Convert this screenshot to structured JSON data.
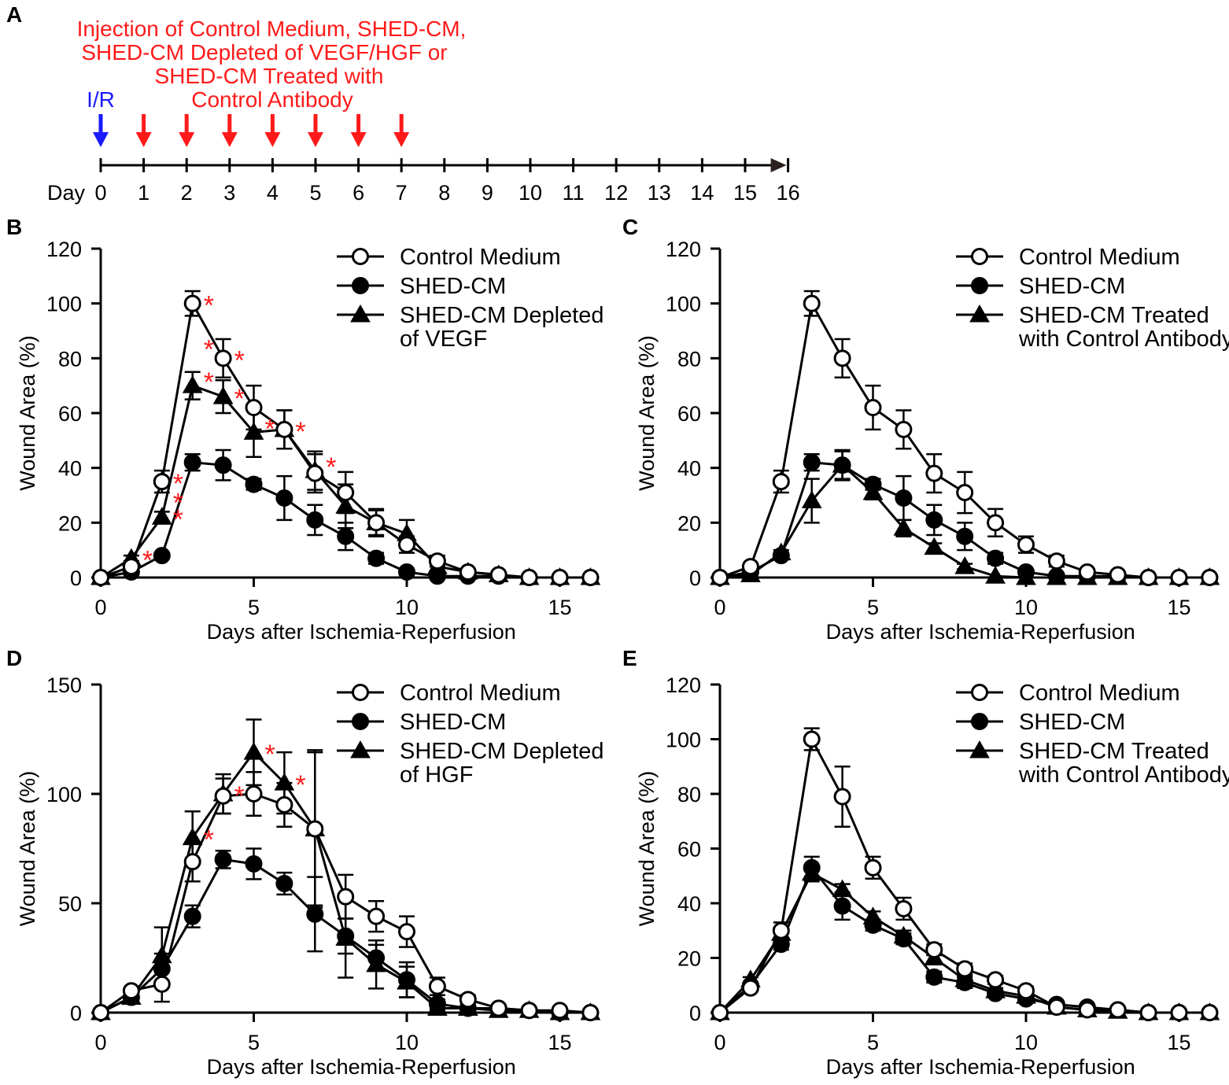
{
  "timeline": {
    "letter": "A",
    "header_lines": [
      "Injection of Control Medium, SHED-CM,",
      "SHED-CM Depleted of VEGF/HGF or",
      "SHED-CM Treated with",
      "Control Antibody"
    ],
    "ir_label": "I/R",
    "day_word": "Day",
    "ir_day": 0,
    "injection_days": [
      1,
      2,
      3,
      4,
      5,
      6,
      7
    ],
    "days": [
      "0",
      "1",
      "2",
      "3",
      "4",
      "5",
      "6",
      "7",
      "8",
      "9",
      "10",
      "11",
      "12",
      "13",
      "14",
      "15",
      "16"
    ],
    "colors": {
      "injection": "#ff1a1a",
      "ir": "#1a1aff",
      "axis": "#000000"
    }
  },
  "chart_data": [
    {
      "panel": "B",
      "type": "line",
      "xlabel": "Days after Ischemia-Reperfusion",
      "ylabel": "Wound Area (%)",
      "xlim": [
        0,
        16
      ],
      "ylim": [
        0,
        120
      ],
      "xticks": [
        "0",
        "5",
        "10",
        "15"
      ],
      "yticks": [
        "0",
        "20",
        "40",
        "60",
        "80",
        "100",
        "120"
      ],
      "legend_position": "top-right",
      "x": [
        0,
        1,
        2,
        3,
        4,
        5,
        6,
        7,
        8,
        9,
        10,
        11,
        12,
        13,
        14,
        15,
        16
      ],
      "series": [
        {
          "name": "Control Medium",
          "marker": "open-circle",
          "values": [
            0,
            4,
            35,
            100,
            80,
            62,
            54,
            38,
            31,
            20,
            12,
            6,
            2,
            1,
            0,
            0,
            0
          ],
          "errors": [
            0,
            1,
            4,
            4.5,
            7,
            8,
            7,
            7,
            7.5,
            5,
            3,
            2,
            1,
            0.5,
            0,
            0,
            0
          ]
        },
        {
          "name": "SHED-CM",
          "marker": "filled-circle",
          "values": [
            0,
            2,
            8,
            42,
            41,
            34,
            29,
            21,
            15,
            7,
            2,
            0.5,
            0.5,
            0.5,
            0,
            0,
            0
          ],
          "errors": [
            0,
            0.5,
            1,
            3,
            5.5,
            2,
            8,
            5.5,
            5,
            2,
            1,
            0.5,
            0,
            0,
            0,
            0,
            0
          ]
        },
        {
          "name": "SHED-CM Depleted of VEGF",
          "legend_lines": [
            "SHED-CM Depleted",
            "of VEGF"
          ],
          "marker": "filled-triangle",
          "values": [
            0,
            7,
            22,
            70,
            66,
            53,
            54,
            39,
            26,
            20,
            16,
            4,
            2,
            1,
            0,
            0,
            0
          ],
          "errors": [
            0,
            1,
            2,
            5,
            6,
            9,
            7,
            7,
            8,
            4.5,
            5,
            2,
            1,
            0.5,
            0,
            0,
            0
          ]
        }
      ],
      "significance": [
        {
          "x": 1,
          "y": 7,
          "mark": "*"
        },
        {
          "x": 2,
          "y": 35,
          "mark": "*"
        },
        {
          "x": 2,
          "y": 22,
          "mark": "*"
        },
        {
          "x": 2,
          "y": 28,
          "mark": "*"
        },
        {
          "x": 3,
          "y": 100,
          "mark": "*"
        },
        {
          "x": 3,
          "y": 84,
          "mark": "*"
        },
        {
          "x": 3,
          "y": 72,
          "mark": "*"
        },
        {
          "x": 4,
          "y": 80,
          "mark": "*"
        },
        {
          "x": 4,
          "y": 66,
          "mark": "*"
        },
        {
          "x": 5,
          "y": 55,
          "mark": "*"
        },
        {
          "x": 6,
          "y": 54,
          "mark": "*"
        },
        {
          "x": 7,
          "y": 41,
          "mark": "*"
        }
      ]
    },
    {
      "panel": "C",
      "type": "line",
      "xlabel": "Days after Ischemia-Reperfusion",
      "ylabel": "Wound Area (%)",
      "xlim": [
        0,
        16
      ],
      "ylim": [
        0,
        120
      ],
      "xticks": [
        "0",
        "5",
        "10",
        "15"
      ],
      "yticks": [
        "0",
        "20",
        "40",
        "60",
        "80",
        "100",
        "120"
      ],
      "legend_position": "top-right",
      "x": [
        0,
        1,
        2,
        3,
        4,
        5,
        6,
        7,
        8,
        9,
        10,
        11,
        12,
        13,
        14,
        15,
        16
      ],
      "series": [
        {
          "name": "Control Medium",
          "marker": "open-circle",
          "values": [
            0,
            4,
            35,
            100,
            80,
            62,
            54,
            38,
            31,
            20,
            12,
            6,
            2,
            1,
            0,
            0,
            0
          ],
          "errors": [
            0,
            1,
            4,
            4.5,
            7,
            8,
            7,
            7,
            7.5,
            5,
            3,
            2,
            1,
            0.5,
            0,
            0,
            0
          ]
        },
        {
          "name": "SHED-CM",
          "marker": "filled-circle",
          "values": [
            0,
            2,
            8,
            42,
            41,
            34,
            29,
            21,
            15,
            7,
            2,
            0.5,
            0.5,
            0.5,
            0,
            0,
            0
          ],
          "errors": [
            0,
            0.5,
            1,
            3,
            5.5,
            2,
            8,
            5.5,
            5,
            2,
            1,
            0.5,
            0,
            0,
            0,
            0,
            0
          ]
        },
        {
          "name": "SHED-CM Treated with Control Antibody",
          "legend_lines": [
            "SHED-CM Treated",
            "with Control Antibody"
          ],
          "marker": "filled-triangle",
          "values": [
            0,
            1,
            9,
            28,
            41,
            31,
            18,
            11,
            4,
            0.5,
            0,
            0,
            0,
            0,
            0,
            0,
            0
          ],
          "errors": [
            0,
            0.5,
            1,
            8,
            5,
            2.5,
            3,
            1.5,
            1,
            0.5,
            0,
            0,
            0,
            0,
            0,
            0,
            0
          ]
        }
      ],
      "significance": []
    },
    {
      "panel": "D",
      "type": "line",
      "xlabel": "Days after Ischemia-Reperfusion",
      "ylabel": "Wound Area (%)",
      "xlim": [
        0,
        16
      ],
      "ylim": [
        0,
        150
      ],
      "xticks": [
        "0",
        "5",
        "10",
        "15"
      ],
      "yticks": [
        "0",
        "50",
        "100",
        "150"
      ],
      "legend_position": "top-right",
      "x": [
        0,
        1,
        2,
        3,
        4,
        5,
        6,
        7,
        8,
        9,
        10,
        11,
        12,
        13,
        14,
        15,
        16
      ],
      "series": [
        {
          "name": "Control Medium",
          "marker": "open-circle",
          "values": [
            0,
            10,
            13,
            69,
            99,
            100,
            95,
            84,
            53,
            44,
            37,
            12,
            6,
            2,
            1,
            1,
            0
          ],
          "errors": [
            0,
            1,
            8,
            9,
            8,
            10,
            10,
            35,
            10,
            7,
            7,
            4,
            2,
            1,
            0.5,
            0.5,
            0
          ]
        },
        {
          "name": "SHED-CM",
          "marker": "filled-circle",
          "values": [
            0,
            7,
            20,
            44,
            70,
            68,
            59,
            45,
            35,
            25,
            15,
            4,
            2,
            2,
            1,
            0,
            0
          ],
          "errors": [
            0,
            1,
            7,
            5,
            4,
            7,
            5,
            17,
            8,
            6,
            8,
            2,
            1,
            0.5,
            0.5,
            0,
            0
          ]
        },
        {
          "name": "SHED-CM Depleted of HGF",
          "legend_lines": [
            "SHED-CM Depleted",
            "of HGF"
          ],
          "marker": "filled-triangle",
          "values": [
            0,
            7,
            26,
            80,
            100,
            119,
            105,
            84,
            34,
            22,
            14,
            2,
            2,
            1,
            1,
            0,
            0
          ],
          "errors": [
            0,
            1,
            13,
            12,
            9,
            15,
            14,
            36,
            18,
            11,
            7,
            1,
            1,
            0.5,
            0.5,
            0,
            0
          ]
        }
      ],
      "significance": [
        {
          "x": 3,
          "y": 80,
          "mark": "*"
        },
        {
          "x": 4,
          "y": 100,
          "mark": "*"
        },
        {
          "x": 5,
          "y": 119,
          "mark": "*"
        },
        {
          "x": 6,
          "y": 105,
          "mark": "*"
        }
      ]
    },
    {
      "panel": "E",
      "type": "line",
      "xlabel": "Days after Ischemia-Reperfusion",
      "ylabel": "Wound Area (%)",
      "xlim": [
        0,
        16
      ],
      "ylim": [
        0,
        120
      ],
      "xticks": [
        "0",
        "5",
        "10",
        "15"
      ],
      "yticks": [
        "0",
        "20",
        "40",
        "60",
        "80",
        "100",
        "120"
      ],
      "legend_position": "top-right",
      "x": [
        0,
        1,
        2,
        3,
        4,
        5,
        6,
        7,
        8,
        9,
        10,
        11,
        12,
        13,
        14,
        15,
        16
      ],
      "series": [
        {
          "name": "Control Medium",
          "marker": "open-circle",
          "values": [
            0,
            9,
            30,
            100,
            79,
            53,
            38,
            23,
            16,
            12,
            8,
            2,
            1,
            1,
            0,
            0,
            0
          ],
          "errors": [
            0,
            1,
            3,
            4,
            11,
            4,
            4,
            2,
            2,
            1.5,
            1.5,
            1,
            0.5,
            0,
            0,
            0,
            0
          ]
        },
        {
          "name": "SHED-CM",
          "marker": "filled-circle",
          "values": [
            0,
            10,
            25,
            53,
            39,
            32,
            27,
            13,
            11,
            7,
            5,
            3,
            2,
            1,
            0,
            0,
            0
          ],
          "errors": [
            0,
            1,
            2,
            4,
            5,
            2,
            2,
            2,
            2,
            1,
            1,
            1,
            0.5,
            0,
            0,
            0,
            0
          ]
        },
        {
          "name": "SHED-CM Treated with Control Antibody",
          "legend_lines": [
            "SHED-CM Treated",
            "with Control Antibody"
          ],
          "marker": "filled-triangle",
          "values": [
            0,
            12,
            29,
            51,
            45,
            35,
            28,
            20,
            12,
            8,
            6,
            2,
            1,
            0.5,
            0,
            0,
            0
          ],
          "errors": [
            0,
            1,
            2,
            3,
            2,
            2,
            2,
            1.5,
            1.5,
            1,
            1,
            0.5,
            0.5,
            0,
            0,
            0,
            0
          ]
        }
      ],
      "significance": []
    }
  ]
}
